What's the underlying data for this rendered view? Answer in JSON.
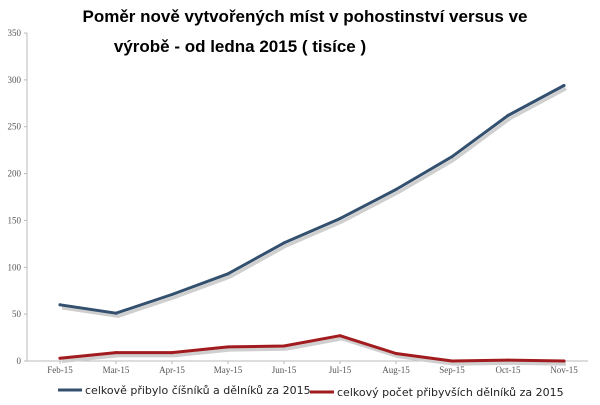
{
  "chart_data": {
    "type": "line",
    "title_lines": [
      "Poměr nově vytvořených míst v pohostinství versus ve",
      "výrobě - od ledna 2015 ( tisíce )"
    ],
    "categories": [
      "Feb-15",
      "Mar-15",
      "Apr-15",
      "May-15",
      "Jun-15",
      "Jul-15",
      "Aug-15",
      "Sep-15",
      "Oct-15",
      "Nov-15"
    ],
    "y_ticks": [
      "0",
      "50",
      "100",
      "150",
      "200",
      "250",
      "300",
      "350"
    ],
    "ylim": [
      0,
      350
    ],
    "grid": false,
    "legend_position": "bottom",
    "series": [
      {
        "name": "celkově přibylo číšníků a dělníků za 2015",
        "color": "#34506f",
        "values": [
          60,
          51,
          71,
          93,
          126,
          152,
          183,
          218,
          262,
          294
        ]
      },
      {
        "name": "celkový počet přibyvších dělníků za 2015",
        "color": "#a21b1e",
        "values": [
          3,
          9,
          9,
          15,
          16,
          27,
          8,
          0,
          1,
          0
        ]
      }
    ]
  }
}
